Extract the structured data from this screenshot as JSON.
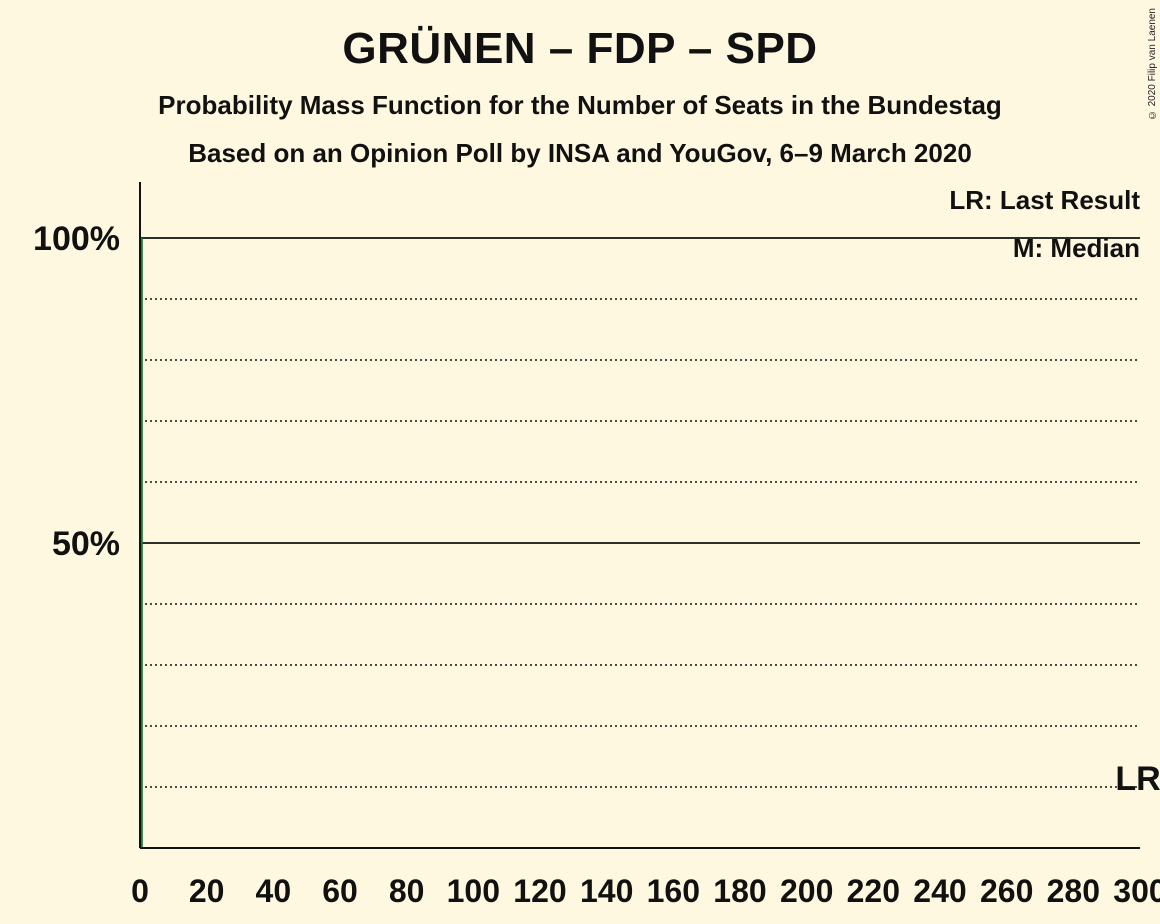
{
  "chart_data": {
    "type": "bar",
    "title": "GRÜNEN – FDP – SPD",
    "subtitle": "Probability Mass Function for the Number of Seats in the Bundestag",
    "subtitle2": "Based on an Opinion Poll by INSA and YouGov, 6–9 March 2020",
    "copyright": "© 2020 Filip van Laenen",
    "xlim": [
      0,
      300
    ],
    "ylim": [
      0,
      1.0
    ],
    "x_ticks": [
      0,
      20,
      40,
      60,
      80,
      100,
      120,
      140,
      160,
      180,
      200,
      220,
      240,
      260,
      280,
      300
    ],
    "y_ticks_labeled": [
      {
        "value": 0.5,
        "label": "50%"
      },
      {
        "value": 1.0,
        "label": "100%"
      }
    ],
    "y_gridlines_dotted": [
      0.1,
      0.2,
      0.3,
      0.4,
      0.6,
      0.7,
      0.8,
      0.9
    ],
    "grid": true,
    "bar_color": "#1E7D3B",
    "series": [
      {
        "x": [
          0
        ],
        "values": [
          1.0
        ]
      }
    ],
    "median_seats": 0,
    "last_result_seats": 300,
    "legend": {
      "position": "top-right",
      "last_result": "LR: Last Result",
      "median": "M: Median"
    },
    "annotations": {
      "lr_marker": "LR"
    }
  }
}
